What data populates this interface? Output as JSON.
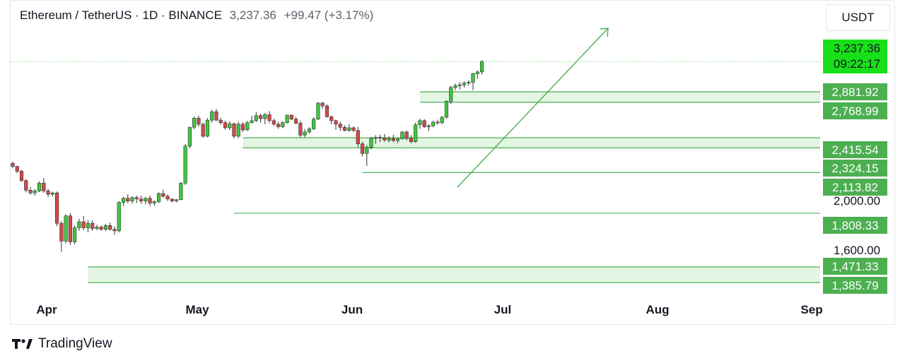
{
  "header": {
    "symbol": "Ethereum / TetherUS · 1D · BINANCE",
    "last": "3,237.36",
    "change": "+99.47 (+3.17%)"
  },
  "currency": "USDT",
  "brand": "TradingView",
  "colors": {
    "up": "#3dc93d",
    "down": "#d14a4a",
    "zone_fill": "#e3f5e3",
    "zone_line": "#4caf50",
    "label_bg": "#4caf50",
    "price_bg": "#18e018"
  },
  "chart_data": {
    "type": "candlestick",
    "x_tick_labels": [
      "Apr",
      "May",
      "Jun",
      "Jul",
      "Aug",
      "Sep"
    ],
    "y_tick_labels": [
      "2,000.00",
      "1,600.00"
    ],
    "current_price": {
      "price": 3237.36,
      "label": "3,237.36",
      "countdown": "09:22:17"
    },
    "levels": [
      {
        "label": "2,881.92",
        "price": 2881.92
      },
      {
        "label": "2,768.99",
        "price": 2768.99
      },
      {
        "label": "2,415.54",
        "price": 2415.54
      },
      {
        "label": "2,324.15",
        "price": 2324.15
      },
      {
        "label": "2,113.82",
        "price": 2113.82
      },
      {
        "label": "1,808.33",
        "price": 1808.33
      },
      {
        "label": "1,471.33",
        "price": 1471.33
      },
      {
        "label": "1,385.79",
        "price": 1385.79
      }
    ],
    "zones": [
      {
        "top": 2881.92,
        "bottom": 2768.99
      },
      {
        "top": 2415.54,
        "bottom": 2324.15
      },
      {
        "top": 1471.33,
        "bottom": 1385.79
      }
    ],
    "ohlc": [
      [
        2190,
        2205,
        2150,
        2165
      ],
      [
        2165,
        2170,
        2110,
        2125
      ],
      [
        2125,
        2135,
        2040,
        2050
      ],
      [
        2050,
        2060,
        1960,
        1975
      ],
      [
        1975,
        2000,
        1940,
        1955
      ],
      [
        1955,
        1985,
        1935,
        1970
      ],
      [
        1970,
        2045,
        1960,
        2030
      ],
      [
        2030,
        2070,
        1955,
        1970
      ],
      [
        1970,
        1985,
        1925,
        1945
      ],
      [
        1945,
        1965,
        1930,
        1955
      ],
      [
        1955,
        1965,
        1720,
        1740
      ],
      [
        1740,
        1755,
        1560,
        1625
      ],
      [
        1625,
        1800,
        1610,
        1790
      ],
      [
        1790,
        1810,
        1600,
        1620
      ],
      [
        1620,
        1725,
        1605,
        1710
      ],
      [
        1710,
        1770,
        1690,
        1750
      ],
      [
        1750,
        1790,
        1695,
        1710
      ],
      [
        1710,
        1760,
        1680,
        1740
      ],
      [
        1740,
        1760,
        1690,
        1705
      ],
      [
        1705,
        1730,
        1695,
        1715
      ],
      [
        1715,
        1725,
        1690,
        1700
      ],
      [
        1700,
        1735,
        1690,
        1725
      ],
      [
        1725,
        1745,
        1690,
        1700
      ],
      [
        1700,
        1720,
        1665,
        1690
      ],
      [
        1690,
        1895,
        1680,
        1885
      ],
      [
        1885,
        1925,
        1860,
        1915
      ],
      [
        1915,
        1945,
        1880,
        1895
      ],
      [
        1895,
        1930,
        1875,
        1920
      ],
      [
        1920,
        1935,
        1880,
        1910
      ],
      [
        1910,
        1935,
        1875,
        1895
      ],
      [
        1895,
        1925,
        1870,
        1915
      ],
      [
        1915,
        1935,
        1860,
        1880
      ],
      [
        1880,
        1900,
        1860,
        1890
      ],
      [
        1890,
        1960,
        1880,
        1950
      ],
      [
        1950,
        1980,
        1920,
        1930
      ],
      [
        1930,
        1945,
        1895,
        1910
      ],
      [
        1910,
        1915,
        1885,
        1895
      ],
      [
        1895,
        1910,
        1885,
        1905
      ],
      [
        1905,
        2040,
        1900,
        2030
      ],
      [
        2030,
        2360,
        2015,
        2340
      ],
      [
        2340,
        2520,
        2320,
        2515
      ],
      [
        2515,
        2620,
        2495,
        2605
      ],
      [
        2605,
        2630,
        2520,
        2545
      ],
      [
        2545,
        2560,
        2415,
        2430
      ],
      [
        2430,
        2605,
        2420,
        2585
      ],
      [
        2585,
        2690,
        2560,
        2670
      ],
      [
        2670,
        2700,
        2575,
        2585
      ],
      [
        2585,
        2610,
        2540,
        2560
      ],
      [
        2560,
        2580,
        2495,
        2510
      ],
      [
        2510,
        2575,
        2490,
        2550
      ],
      [
        2550,
        2560,
        2410,
        2430
      ],
      [
        2430,
        2570,
        2410,
        2545
      ],
      [
        2545,
        2565,
        2470,
        2490
      ],
      [
        2490,
        2575,
        2480,
        2560
      ],
      [
        2560,
        2630,
        2550,
        2580
      ],
      [
        2580,
        2670,
        2565,
        2630
      ],
      [
        2630,
        2650,
        2560,
        2600
      ],
      [
        2600,
        2660,
        2545,
        2640
      ],
      [
        2640,
        2675,
        2555,
        2580
      ],
      [
        2580,
        2600,
        2530,
        2545
      ],
      [
        2545,
        2570,
        2500,
        2520
      ],
      [
        2520,
        2575,
        2505,
        2560
      ],
      [
        2560,
        2640,
        2550,
        2635
      ],
      [
        2635,
        2640,
        2585,
        2595
      ],
      [
        2595,
        2615,
        2545,
        2555
      ],
      [
        2555,
        2580,
        2420,
        2440
      ],
      [
        2440,
        2500,
        2420,
        2470
      ],
      [
        2470,
        2515,
        2455,
        2500
      ],
      [
        2500,
        2615,
        2490,
        2595
      ],
      [
        2595,
        2770,
        2585,
        2760
      ],
      [
        2760,
        2775,
        2700,
        2730
      ],
      [
        2730,
        2745,
        2610,
        2620
      ],
      [
        2620,
        2630,
        2545,
        2580
      ],
      [
        2580,
        2590,
        2490,
        2545
      ],
      [
        2545,
        2570,
        2480,
        2515
      ],
      [
        2515,
        2535,
        2475,
        2485
      ],
      [
        2485,
        2545,
        2470,
        2510
      ],
      [
        2510,
        2525,
        2470,
        2485
      ],
      [
        2485,
        2520,
        2330,
        2360
      ],
      [
        2360,
        2380,
        2250,
        2275
      ],
      [
        2275,
        2350,
        2170,
        2330
      ],
      [
        2330,
        2425,
        2310,
        2410
      ],
      [
        2410,
        2440,
        2360,
        2420
      ],
      [
        2420,
        2445,
        2375,
        2415
      ],
      [
        2415,
        2450,
        2380,
        2395
      ],
      [
        2395,
        2430,
        2370,
        2410
      ],
      [
        2410,
        2445,
        2375,
        2390
      ],
      [
        2390,
        2420,
        2365,
        2405
      ],
      [
        2405,
        2480,
        2400,
        2470
      ],
      [
        2470,
        2485,
        2390,
        2410
      ],
      [
        2410,
        2440,
        2365,
        2380
      ],
      [
        2380,
        2560,
        2370,
        2540
      ],
      [
        2540,
        2600,
        2500,
        2580
      ],
      [
        2580,
        2595,
        2510,
        2520
      ],
      [
        2520,
        2545,
        2480,
        2530
      ],
      [
        2530,
        2580,
        2515,
        2565
      ],
      [
        2565,
        2590,
        2540,
        2560
      ],
      [
        2560,
        2625,
        2545,
        2615
      ],
      [
        2615,
        2790,
        2600,
        2780
      ],
      [
        2780,
        2950,
        2750,
        2930
      ],
      [
        2930,
        2975,
        2900,
        2950
      ],
      [
        2950,
        2990,
        2905,
        2960
      ],
      [
        2960,
        3000,
        2930,
        2980
      ],
      [
        2980,
        3010,
        2950,
        2990
      ],
      [
        2990,
        3100,
        2900,
        3090
      ],
      [
        3090,
        3130,
        3030,
        3110
      ],
      [
        3110,
        3250,
        3080,
        3237.36
      ]
    ]
  }
}
